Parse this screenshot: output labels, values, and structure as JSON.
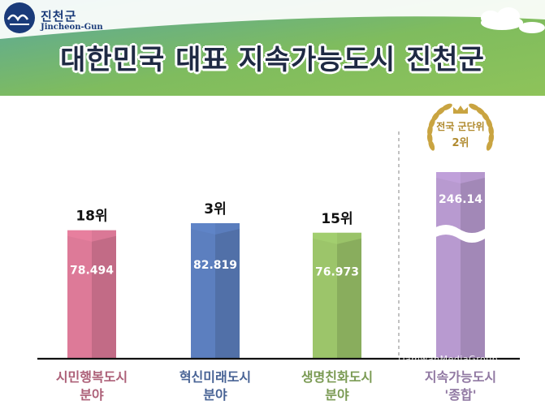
{
  "brand": {
    "name_ko": "진천군",
    "name_en": "Jincheon-Gun"
  },
  "title": "대한민국 대표 지속가능도시 진천군",
  "badge": {
    "line1": "전국 군단위",
    "line2": "2위"
  },
  "watermark": "DamwanMediaGroup",
  "colors": {
    "header_green": "#86c05a",
    "header_teal": "#5aa8a0",
    "bar1": "#dd7a98",
    "bar2": "#5c7fbf",
    "bar3": "#9cc56a",
    "bar4": "#b89ad0"
  },
  "chart_data": {
    "type": "bar",
    "categories": [
      [
        "시민행복도시",
        "분야"
      ],
      [
        "혁신미래도시",
        "분야"
      ],
      [
        "생명친화도시",
        "분야"
      ],
      [
        "지속가능도시",
        "'종합'"
      ]
    ],
    "values": [
      78.494,
      82.819,
      76.973,
      246.14
    ],
    "value_labels": [
      "78.494",
      "82.819",
      "76.973",
      "246.14"
    ],
    "rank_labels": [
      "18위",
      "3위",
      "15위",
      ""
    ],
    "axis_break_on": [
      3
    ],
    "grid": false,
    "legend": "none"
  }
}
